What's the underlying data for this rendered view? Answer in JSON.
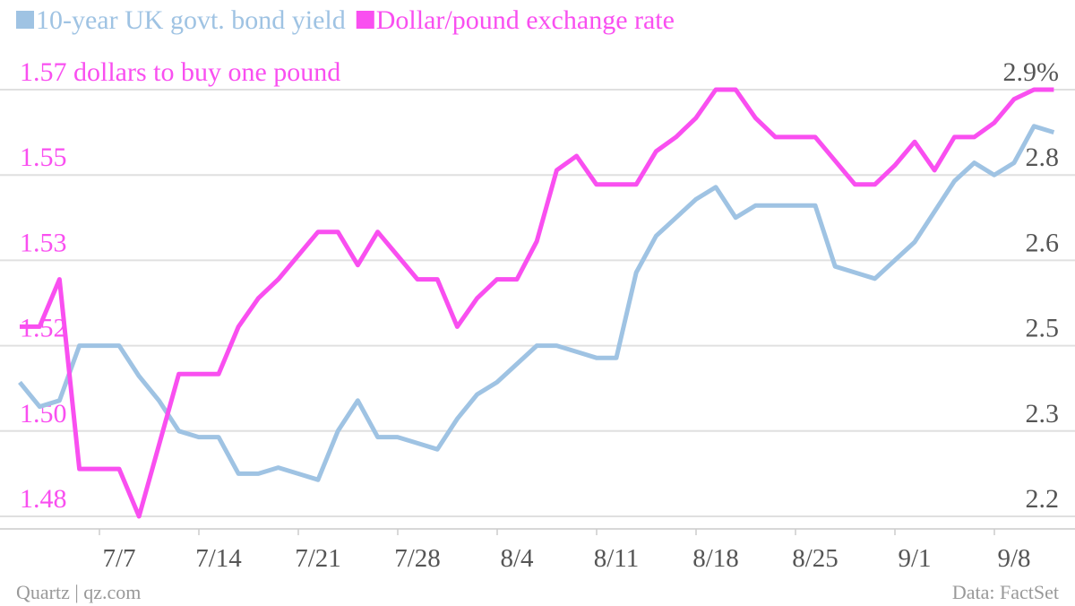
{
  "chart_data": {
    "type": "line",
    "credit": "Quartz | qz.com",
    "source": "Data: FactSet",
    "categories": [
      null,
      null,
      null,
      null,
      null,
      "7/7",
      null,
      null,
      null,
      null,
      "7/14",
      null,
      null,
      null,
      null,
      "7/21",
      null,
      null,
      null,
      null,
      "7/28",
      null,
      null,
      null,
      null,
      "8/4",
      null,
      null,
      null,
      null,
      "8/11",
      null,
      null,
      null,
      null,
      "8/18",
      null,
      null,
      null,
      null,
      "8/25",
      null,
      null,
      null,
      null,
      "9/1",
      null,
      null,
      null,
      null,
      "9/8",
      null,
      null
    ],
    "series": [
      {
        "name": "10-year UK govt. bond yield",
        "color": "#9fc3e3",
        "axis": "y2",
        "values": [
          2.42,
          2.38,
          2.39,
          2.48,
          2.48,
          2.48,
          2.43,
          2.39,
          2.34,
          2.33,
          2.33,
          2.27,
          2.27,
          2.28,
          2.27,
          2.26,
          2.34,
          2.39,
          2.33,
          2.33,
          2.32,
          2.31,
          2.36,
          2.4,
          2.42,
          2.45,
          2.48,
          2.48,
          2.47,
          2.46,
          2.46,
          2.6,
          2.66,
          2.69,
          2.72,
          2.74,
          2.69,
          2.71,
          2.71,
          2.71,
          2.71,
          2.61,
          2.6,
          2.59,
          2.62,
          2.65,
          2.7,
          2.75,
          2.78,
          2.76,
          2.78,
          2.84,
          2.83
        ]
      },
      {
        "name": "Dollar/pound exchange rate",
        "color": "#f94ff0",
        "values": [
          1.52,
          1.52,
          1.53,
          1.49,
          1.49,
          1.49,
          1.48,
          1.495,
          1.51,
          1.51,
          1.51,
          1.52,
          1.526,
          1.53,
          1.535,
          1.54,
          1.54,
          1.533,
          1.54,
          1.535,
          1.53,
          1.53,
          1.52,
          1.526,
          1.53,
          1.53,
          1.538,
          1.553,
          1.556,
          1.55,
          1.55,
          1.55,
          1.557,
          1.56,
          1.564,
          1.57,
          1.57,
          1.564,
          1.56,
          1.56,
          1.56,
          1.555,
          1.55,
          1.55,
          1.554,
          1.559,
          1.553,
          1.56,
          1.56,
          1.563,
          1.568,
          1.57,
          1.57
        ]
      }
    ],
    "ylim": [
      1.48,
      1.57
    ],
    "yticks": [
      1.48,
      {
        "value": 1.498,
        "label": "1.50"
      },
      {
        "value": 1.516,
        "label": "1.52"
      },
      {
        "value": 1.534,
        "label": "1.53"
      },
      {
        "value": 1.552,
        "label": "1.55"
      },
      {
        "value": 1.57,
        "label": "1.57 dollars to buy one pound"
      }
    ],
    "y2lim": [
      2.2,
      2.9
    ],
    "y2ticks": [
      2.2,
      {
        "value": 2.34,
        "label": "2.3"
      },
      {
        "value": 2.48,
        "label": "2.5"
      },
      {
        "value": 2.62,
        "label": "2.6"
      },
      {
        "value": 2.76,
        "label": "2.8"
      },
      {
        "value": 2.9,
        "label": "2.9%"
      }
    ],
    "grid": true,
    "legend": "top-left"
  }
}
